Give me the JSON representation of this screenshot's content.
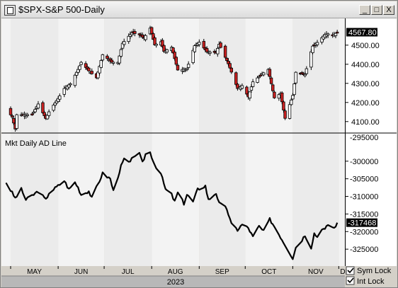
{
  "window": {
    "title": "$SPX-S&P 500-Daily",
    "buttons": {
      "minimize": "_",
      "maximize": "□",
      "close": "X"
    }
  },
  "chart_data": [
    {
      "type": "candlestick",
      "title": "$SPX-S&P 500-Daily",
      "ylim": [
        4040,
        4640
      ],
      "yticks": [
        4100,
        4200,
        4300,
        4400,
        4500
      ],
      "ytick_labels": [
        "4100.00",
        "4200.00",
        "4300.00",
        "4400.00",
        "4500.00"
      ],
      "last_value_label": "4567.80",
      "last_value": 4567.8,
      "up_color": "#ffffff",
      "down_color": "#cc2222",
      "anchors": [
        [
          "2023-04-28",
          4169
        ],
        [
          "2023-05-02",
          4124
        ],
        [
          "2023-05-04",
          4061
        ],
        [
          "2023-05-05",
          4136
        ],
        [
          "2023-05-10",
          4137
        ],
        [
          "2023-05-15",
          4136
        ],
        [
          "2023-05-19",
          4192
        ],
        [
          "2023-05-24",
          4115
        ],
        [
          "2023-05-26",
          4151
        ],
        [
          "2023-06-01",
          4221
        ],
        [
          "2023-06-05",
          4273
        ],
        [
          "2023-06-09",
          4298
        ],
        [
          "2023-06-14",
          4373
        ],
        [
          "2023-06-16",
          4410
        ],
        [
          "2023-06-21",
          4365
        ],
        [
          "2023-06-26",
          4329
        ],
        [
          "2023-06-30",
          4450
        ],
        [
          "2023-07-06",
          4411
        ],
        [
          "2023-07-10",
          4410
        ],
        [
          "2023-07-13",
          4510
        ],
        [
          "2023-07-19",
          4565
        ],
        [
          "2023-07-24",
          4554
        ],
        [
          "2023-07-27",
          4537
        ],
        [
          "2023-07-31",
          4589
        ],
        [
          "2023-08-03",
          4501
        ],
        [
          "2023-08-07",
          4518
        ],
        [
          "2023-08-09",
          4467
        ],
        [
          "2023-08-14",
          4489
        ],
        [
          "2023-08-18",
          4370
        ],
        [
          "2023-08-24",
          4376
        ],
        [
          "2023-08-29",
          4497
        ],
        [
          "2023-09-01",
          4515
        ],
        [
          "2023-09-06",
          4465
        ],
        [
          "2023-09-12",
          4461
        ],
        [
          "2023-09-14",
          4505
        ],
        [
          "2023-09-20",
          4402
        ],
        [
          "2023-09-26",
          4273
        ],
        [
          "2023-09-29",
          4288
        ],
        [
          "2023-10-03",
          4229
        ],
        [
          "2023-10-06",
          4308
        ],
        [
          "2023-10-12",
          4349
        ],
        [
          "2023-10-16",
          4373
        ],
        [
          "2023-10-20",
          4224
        ],
        [
          "2023-10-24",
          4247
        ],
        [
          "2023-10-27",
          4117
        ],
        [
          "2023-11-01",
          4237
        ],
        [
          "2023-11-03",
          4358
        ],
        [
          "2023-11-09",
          4347
        ],
        [
          "2023-11-14",
          4495
        ],
        [
          "2023-11-17",
          4514
        ],
        [
          "2023-11-22",
          4556
        ],
        [
          "2023-11-24",
          4559
        ],
        [
          "2023-11-27",
          4550
        ],
        [
          "2023-11-30",
          4567.8
        ]
      ]
    },
    {
      "type": "line",
      "title": "Mkt Daily AD Line",
      "ylim": [
        -329800,
        -292000
      ],
      "yticks": [
        -300000,
        -305000,
        -310000,
        -315000,
        -320000,
        -325000
      ],
      "ytick_labels": [
        "-300000",
        "-305000",
        "-310000",
        "-315000",
        "-320000",
        "-325000"
      ],
      "partial_tick_label": "-295000",
      "last_value_label": "-317468",
      "last_value": -317468,
      "line_color": "#000000",
      "anchors": [
        [
          "2023-04-28",
          -306000
        ],
        [
          "2023-05-04",
          -310500
        ],
        [
          "2023-05-08",
          -308000
        ],
        [
          "2023-05-11",
          -311000
        ],
        [
          "2023-05-16",
          -309500
        ],
        [
          "2023-05-19",
          -308500
        ],
        [
          "2023-05-24",
          -311000
        ],
        [
          "2023-05-26",
          -309000
        ],
        [
          "2023-06-01",
          -307000
        ],
        [
          "2023-06-05",
          -305500
        ],
        [
          "2023-06-08",
          -308000
        ],
        [
          "2023-06-12",
          -306000
        ],
        [
          "2023-06-14",
          -307500
        ],
        [
          "2023-06-16",
          -309500
        ],
        [
          "2023-06-21",
          -308500
        ],
        [
          "2023-06-23",
          -310500
        ],
        [
          "2023-06-28",
          -305500
        ],
        [
          "2023-06-30",
          -303500
        ],
        [
          "2023-07-05",
          -305000
        ],
        [
          "2023-07-07",
          -308500
        ],
        [
          "2023-07-12",
          -301500
        ],
        [
          "2023-07-14",
          -299500
        ],
        [
          "2023-07-18",
          -300500
        ],
        [
          "2023-07-20",
          -298500
        ],
        [
          "2023-07-24",
          -298000
        ],
        [
          "2023-07-26",
          -300500
        ],
        [
          "2023-07-28",
          -298000
        ],
        [
          "2023-07-31",
          -297500
        ],
        [
          "2023-08-03",
          -301000
        ],
        [
          "2023-08-07",
          -303500
        ],
        [
          "2023-08-10",
          -308000
        ],
        [
          "2023-08-14",
          -309500
        ],
        [
          "2023-08-16",
          -311500
        ],
        [
          "2023-08-18",
          -309000
        ],
        [
          "2023-08-22",
          -312000
        ],
        [
          "2023-08-24",
          -309500
        ],
        [
          "2023-08-28",
          -311500
        ],
        [
          "2023-08-31",
          -308000
        ],
        [
          "2023-09-05",
          -307000
        ],
        [
          "2023-09-07",
          -311000
        ],
        [
          "2023-09-12",
          -309000
        ],
        [
          "2023-09-14",
          -312000
        ],
        [
          "2023-09-19",
          -313500
        ],
        [
          "2023-09-22",
          -318000
        ],
        [
          "2023-09-26",
          -319500
        ],
        [
          "2023-09-29",
          -318000
        ],
        [
          "2023-10-03",
          -319000
        ],
        [
          "2023-10-06",
          -321500
        ],
        [
          "2023-10-10",
          -318500
        ],
        [
          "2023-10-13",
          -320000
        ],
        [
          "2023-10-17",
          -316500
        ],
        [
          "2023-10-20",
          -318500
        ],
        [
          "2023-10-24",
          -321500
        ],
        [
          "2023-10-26",
          -323000
        ],
        [
          "2023-10-30",
          -326000
        ],
        [
          "2023-11-01",
          -327500
        ],
        [
          "2023-11-03",
          -324500
        ],
        [
          "2023-11-06",
          -323000
        ],
        [
          "2023-11-09",
          -321000
        ],
        [
          "2023-11-13",
          -324500
        ],
        [
          "2023-11-15",
          -320500
        ],
        [
          "2023-11-17",
          -321500
        ],
        [
          "2023-11-20",
          -319000
        ],
        [
          "2023-11-22",
          -319500
        ],
        [
          "2023-11-24",
          -318000
        ],
        [
          "2023-11-28",
          -319000
        ],
        [
          "2023-11-30",
          -317468
        ]
      ]
    }
  ],
  "xaxis": {
    "xlim": [
      "2023-04-25",
      "2023-12-05"
    ],
    "months": [
      {
        "label": "MAY",
        "date": "2023-05-01"
      },
      {
        "label": "JUN",
        "date": "2023-06-01"
      },
      {
        "label": "JUL",
        "date": "2023-07-01"
      },
      {
        "label": "AUG",
        "date": "2023-08-01"
      },
      {
        "label": "SEP",
        "date": "2023-09-01"
      },
      {
        "label": "OCT",
        "date": "2023-10-01"
      },
      {
        "label": "NOV",
        "date": "2023-11-01"
      },
      {
        "label": "DE",
        "date": "2023-12-01"
      }
    ],
    "year_label": "2023"
  },
  "background_bands": [
    "#f3f3f3",
    "#ebebeb"
  ],
  "controls": {
    "sym_lock": "Sym Lock",
    "int_lock": "Int Lock",
    "sym_lock_checked": true,
    "int_lock_checked": true
  }
}
